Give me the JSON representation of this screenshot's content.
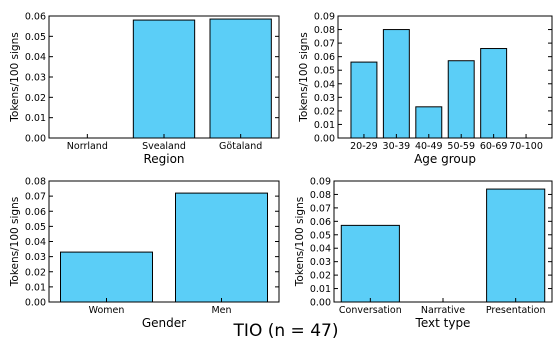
{
  "suptitle": "TIO (n = 47)",
  "colors": {
    "bar_fill": "#5bcef7",
    "bar_edge": "#000000",
    "axes": "#000000"
  },
  "chart_data": [
    {
      "type": "bar",
      "categories": [
        "Norrland",
        "Svealand",
        "Götaland"
      ],
      "values": [
        0.0,
        0.058,
        0.0585
      ],
      "xlabel": "Region",
      "ylabel": "Tokens/100 signs",
      "ylim": [
        0,
        0.06
      ],
      "yticks": [
        "0.00",
        "0.01",
        "0.02",
        "0.03",
        "0.04",
        "0.05",
        "0.06"
      ],
      "grid": false
    },
    {
      "type": "bar",
      "categories": [
        "20-29",
        "30-39",
        "40-49",
        "50-59",
        "60-69",
        "70-100"
      ],
      "values": [
        0.056,
        0.08,
        0.023,
        0.057,
        0.066,
        0.0
      ],
      "xlabel": "Age group",
      "ylabel": "Tokens/100 signs",
      "ylim": [
        0,
        0.09
      ],
      "yticks": [
        "0.00",
        "0.01",
        "0.02",
        "0.03",
        "0.04",
        "0.05",
        "0.06",
        "0.07",
        "0.08",
        "0.09"
      ],
      "grid": false
    },
    {
      "type": "bar",
      "categories": [
        "Women",
        "Men"
      ],
      "values": [
        0.033,
        0.072
      ],
      "xlabel": "Gender",
      "ylabel": "Tokens/100 signs",
      "ylim": [
        0,
        0.08
      ],
      "yticks": [
        "0.00",
        "0.01",
        "0.02",
        "0.03",
        "0.04",
        "0.05",
        "0.06",
        "0.07",
        "0.08"
      ],
      "grid": false
    },
    {
      "type": "bar",
      "categories": [
        "Conversation",
        "Narrative",
        "Presentation"
      ],
      "values": [
        0.057,
        0.0,
        0.084
      ],
      "xlabel": "Text type",
      "ylabel": "Tokens/100 signs",
      "ylim": [
        0,
        0.09
      ],
      "yticks": [
        "0.00",
        "0.01",
        "0.02",
        "0.03",
        "0.04",
        "0.05",
        "0.06",
        "0.07",
        "0.08",
        "0.09"
      ],
      "grid": false
    }
  ]
}
